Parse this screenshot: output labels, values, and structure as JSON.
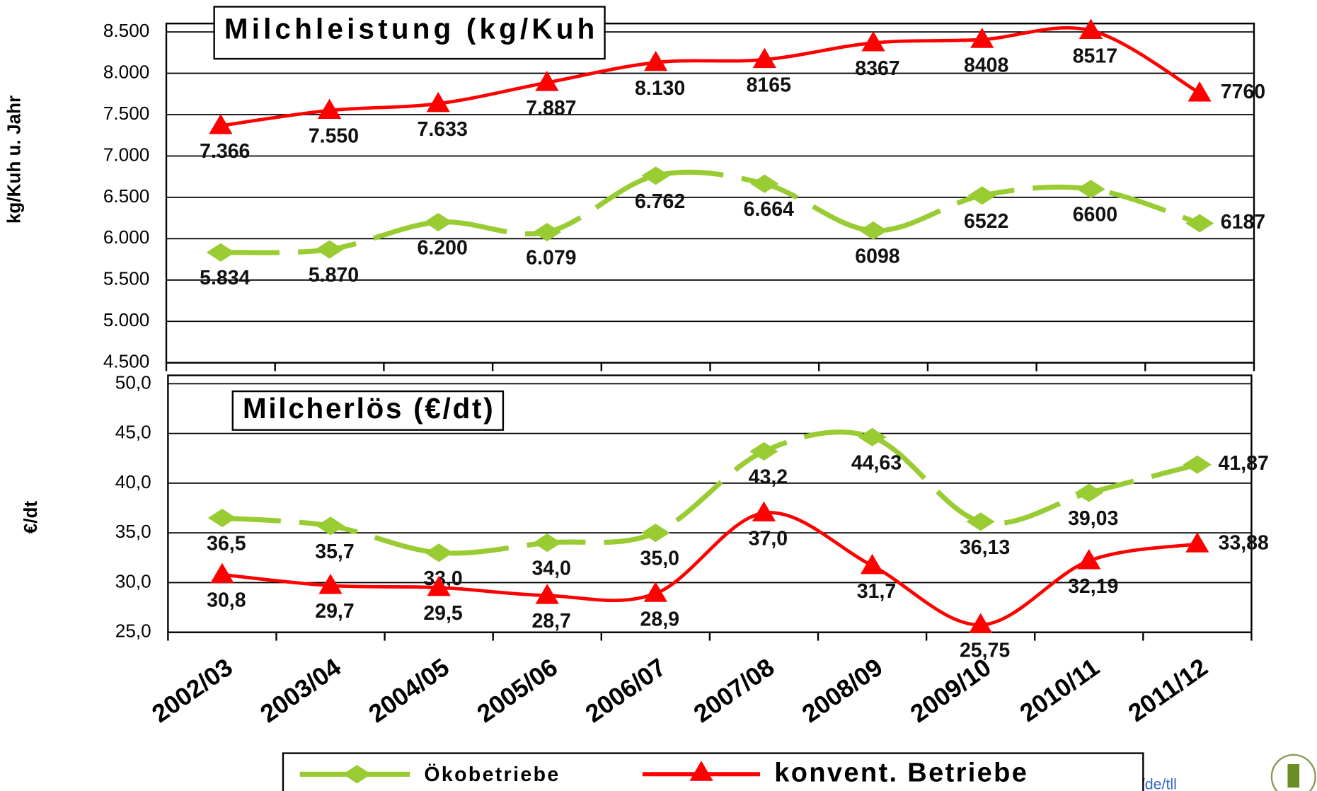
{
  "chart_data": [
    {
      "type": "line",
      "title": "Milchleistung (kg/Kuh",
      "y_label": "kg/Kuh u. Jahr",
      "ylim": [
        4500,
        8500
      ],
      "yticks": [
        {
          "value": 4500,
          "label": "4.500"
        },
        {
          "value": 5000,
          "label": "5.000"
        },
        {
          "value": 5500,
          "label": "5.500"
        },
        {
          "value": 6000,
          "label": "6.000"
        },
        {
          "value": 6500,
          "label": "6.500"
        },
        {
          "value": 7000,
          "label": "7.000"
        },
        {
          "value": 7500,
          "label": "7.500"
        },
        {
          "value": 8000,
          "label": "8.000"
        },
        {
          "value": 8500,
          "label": "8.500"
        }
      ],
      "grid": true,
      "series": [
        {
          "name": "Ökobetriebe",
          "color": "#99cc33",
          "dashed": true,
          "marker": "diamond",
          "values": [
            5834,
            5870,
            6200,
            6079,
            6762,
            6664,
            6098,
            6522,
            6600,
            6187
          ],
          "value_labels": [
            "5.834",
            "5.870",
            "6.200",
            "6.079",
            "6.762",
            "6.664",
            "6098",
            "6522",
            "6600",
            "6187"
          ]
        },
        {
          "name": "konvent. Betriebe",
          "color": "#ff0000",
          "dashed": false,
          "marker": "triangle",
          "values": [
            7366,
            7550,
            7633,
            7887,
            8130,
            8165,
            8367,
            8408,
            8517,
            7760
          ],
          "value_labels": [
            "7.366",
            "7.550",
            "7.633",
            "7.887",
            "8.130",
            "8165",
            "8367",
            "8408",
            "8517",
            "7760"
          ]
        }
      ]
    },
    {
      "type": "line",
      "title": "Milcherlös (€/dt)",
      "y_label": "€/dt",
      "categories": [
        "2002/03",
        "2003/04",
        "2004/05",
        "2005/06",
        "2006/07",
        "2007/08",
        "2008/09",
        "2009/10",
        "2010/11",
        "2011/12"
      ],
      "ylim": [
        25,
        50
      ],
      "yticks": [
        {
          "value": 25,
          "label": "25,0"
        },
        {
          "value": 30,
          "label": "30,0"
        },
        {
          "value": 35,
          "label": "35,0"
        },
        {
          "value": 40,
          "label": "40,0"
        },
        {
          "value": 45,
          "label": "45,0"
        },
        {
          "value": 50,
          "label": "50,0"
        }
      ],
      "grid": true,
      "series": [
        {
          "color": "#99cc33",
          "dashed": true,
          "marker": "diamond",
          "values": [
            36.5,
            35.7,
            33.0,
            34.0,
            35.0,
            43.2,
            44.63,
            36.13,
            39.03,
            41.87
          ],
          "value_labels": [
            "36,5",
            "35,7",
            "33,0",
            "34,0",
            "35,0",
            "43,2",
            "44,63",
            "36,13",
            "39,03",
            "41,87"
          ]
        },
        {
          "color": "#ff0000",
          "dashed": false,
          "marker": "triangle",
          "values": [
            30.8,
            29.7,
            29.5,
            28.7,
            28.9,
            37.0,
            31.7,
            25.75,
            32.19,
            33.88
          ],
          "value_labels": [
            "30,8",
            "29,7",
            "29,5",
            "28,7",
            "28,9",
            "37,0",
            "31,7",
            "25,75",
            "32,19",
            "33,88"
          ]
        }
      ]
    }
  ],
  "footer_url": "www.thueringen.de/de/tll"
}
